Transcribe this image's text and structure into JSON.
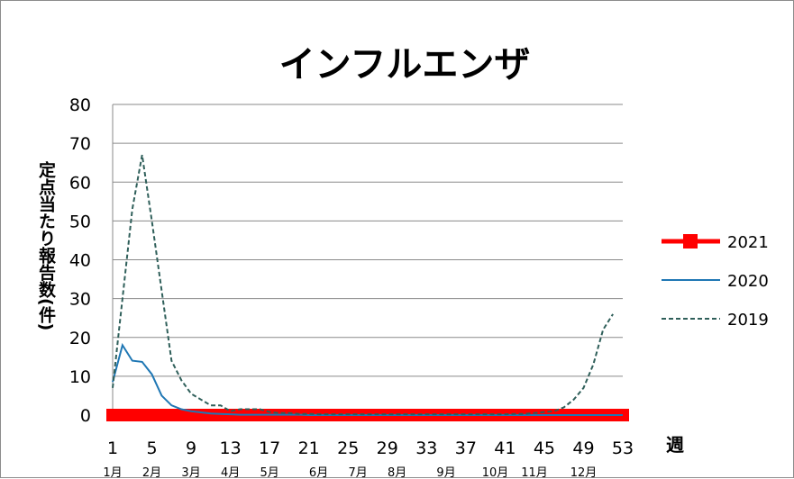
{
  "chart_data": {
    "type": "line",
    "title": "インフルエンザ",
    "ylabel": "定点当たり報告数(件)",
    "xlabel": "週",
    "ylim": [
      0,
      80
    ],
    "yticks": [
      0,
      10,
      20,
      30,
      40,
      50,
      60,
      70,
      80
    ],
    "xlim": [
      1,
      53
    ],
    "xticks": [
      1,
      5,
      9,
      13,
      17,
      21,
      25,
      29,
      33,
      37,
      41,
      45,
      49,
      53
    ],
    "month_labels": [
      {
        "label": "1月",
        "week": 1
      },
      {
        "label": "2月",
        "week": 5
      },
      {
        "label": "3月",
        "week": 9
      },
      {
        "label": "4月",
        "week": 13
      },
      {
        "label": "5月",
        "week": 17
      },
      {
        "label": "6月",
        "week": 22
      },
      {
        "label": "7月",
        "week": 26
      },
      {
        "label": "8月",
        "week": 30
      },
      {
        "label": "9月",
        "week": 35
      },
      {
        "label": "10月",
        "week": 40
      },
      {
        "label": "11月",
        "week": 44
      },
      {
        "label": "12月",
        "week": 49
      }
    ],
    "grid": true,
    "legend": "right",
    "series": [
      {
        "name": "2021",
        "color": "#ff0000",
        "style": "thick-square",
        "x": [
          1,
          53
        ],
        "y": [
          0,
          0
        ]
      },
      {
        "name": "2020",
        "color": "#1f77b4",
        "style": "solid",
        "x": [
          1,
          2,
          3,
          4,
          5,
          6,
          7,
          8,
          9,
          10,
          11,
          12,
          13,
          14,
          15,
          16,
          17,
          18,
          19,
          20,
          21,
          22,
          23,
          24,
          25,
          26,
          27,
          28,
          29,
          30,
          31,
          32,
          33,
          34,
          35,
          36,
          37,
          38,
          39,
          40,
          41,
          42,
          43,
          44,
          45,
          46,
          47,
          48,
          49,
          50,
          51,
          52,
          53
        ],
        "y": [
          8.5,
          18,
          14,
          13.7,
          10.5,
          5,
          2.5,
          1.5,
          1,
          0.7,
          0.4,
          0.3,
          0.2,
          0.1,
          0.1,
          0.1,
          0.1,
          0.1,
          0.1,
          0.1,
          0,
          0,
          0,
          0,
          0,
          0,
          0,
          0,
          0,
          0,
          0,
          0,
          0,
          0,
          0,
          0,
          0,
          0,
          0,
          0,
          0,
          0,
          0,
          0,
          0,
          0,
          0,
          0,
          0,
          0,
          0,
          0,
          0
        ]
      },
      {
        "name": "2019",
        "color": "#2f5f5a",
        "style": "dashed",
        "x": [
          1,
          2,
          3,
          4,
          5,
          6,
          7,
          8,
          9,
          10,
          11,
          12,
          13,
          14,
          15,
          16,
          17,
          18,
          19,
          20,
          21,
          22,
          23,
          24,
          25,
          26,
          27,
          28,
          29,
          30,
          31,
          32,
          33,
          34,
          35,
          36,
          37,
          38,
          39,
          40,
          41,
          42,
          43,
          44,
          45,
          46,
          47,
          48,
          49,
          50,
          51,
          52
        ],
        "y": [
          7,
          30,
          53,
          67,
          50,
          32,
          14,
          9,
          5.5,
          4,
          2.5,
          2.5,
          1,
          1.5,
          1.5,
          1.5,
          0.8,
          0.5,
          0.5,
          0.3,
          0.3,
          0.2,
          0.2,
          0.2,
          0.2,
          0.2,
          0.2,
          0.2,
          0.2,
          0.2,
          0.2,
          0.2,
          0.2,
          0.2,
          0.2,
          0.2,
          0.2,
          0.2,
          0.2,
          0.2,
          0.2,
          0.3,
          0.3,
          0.5,
          0.8,
          1,
          2,
          4,
          7,
          13,
          22,
          26
        ]
      }
    ]
  }
}
